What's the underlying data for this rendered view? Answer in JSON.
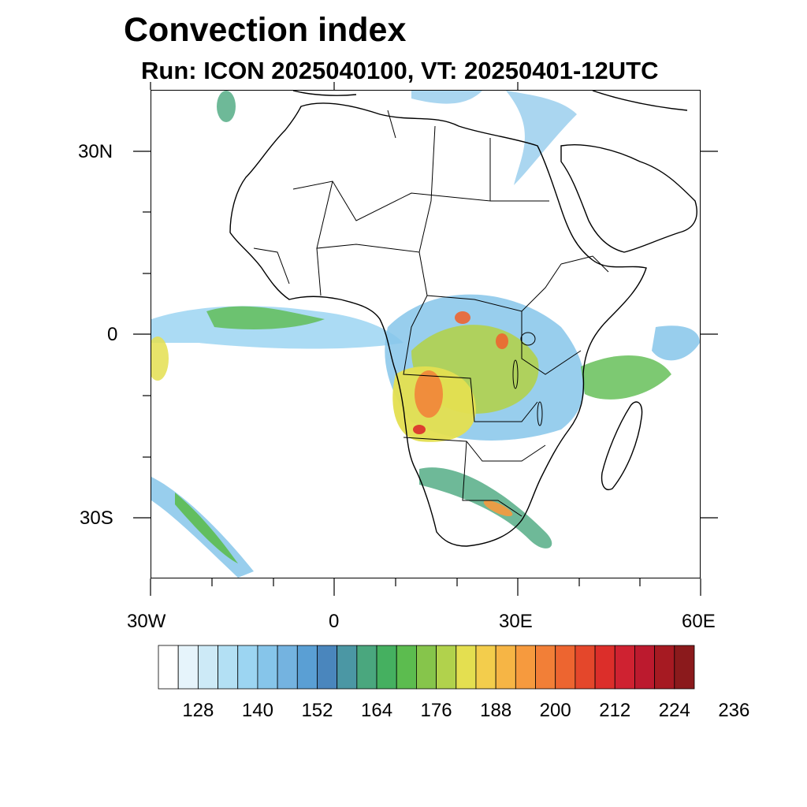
{
  "title": "Convection index",
  "subtitle": "Run: ICON 2025040100,  VT: 20250401-12UTC",
  "map": {
    "region": "Africa",
    "lat_ticks": [
      "30N",
      "0",
      "30S"
    ],
    "lon_ticks": [
      "30W",
      "0",
      "30E",
      "60E"
    ],
    "features": [
      "coastlines",
      "country-borders",
      "convection-index-shading"
    ]
  },
  "colorbar": {
    "labels": [
      "128",
      "140",
      "152",
      "164",
      "176",
      "188",
      "200",
      "212",
      "224",
      "236"
    ],
    "colors": [
      "#ffffff",
      "#e6f4fb",
      "#cdeaf7",
      "#b3e0f4",
      "#9cd5f2",
      "#86c5ea",
      "#74b3e0",
      "#5a9fd4",
      "#4a86bd",
      "#4b97a4",
      "#4aa77e",
      "#45b060",
      "#5cbc4f",
      "#86c54b",
      "#b1d24c",
      "#e4df50",
      "#f3cd4c",
      "#f6b545",
      "#f69a3e",
      "#f27f37",
      "#ed6530",
      "#e4472b",
      "#dc2e2a",
      "#cf2231",
      "#bc1a2e",
      "#a61a22",
      "#8b1a1c"
    ]
  }
}
